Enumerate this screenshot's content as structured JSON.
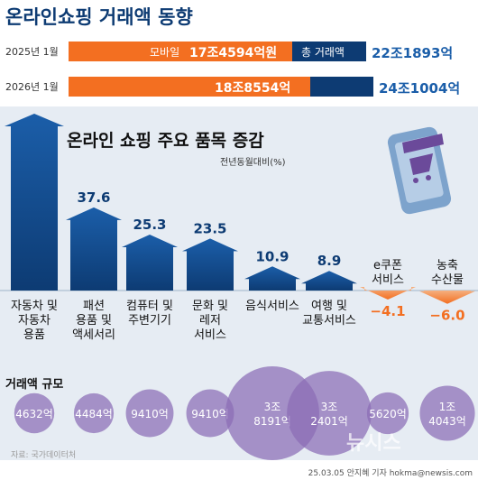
{
  "title": "온라인쇼핑 거래액 동향",
  "rows": [
    {
      "year": "2025년 1월",
      "mobile_label": "모바일",
      "mobile_value": "17조4594억원",
      "total_label": "총 거래액",
      "total_value": "22조1893억"
    },
    {
      "year": "2026년 1월",
      "mobile_label": "",
      "mobile_value": "18조8554억",
      "total_label": "",
      "total_value": "24조1004억"
    }
  ],
  "chart_title": "온라인 쇼핑 주요 품목 증감",
  "unit_label": "전년동월대비(%)",
  "volume_label": "거래액 규모",
  "source": "자료: 국가데이터처",
  "credit": "25.03.05 안지혜 기자 hokma@newsis.com",
  "watermark": "뉴시스",
  "colors": {
    "navy": "#0d3b73",
    "blue": "#1b5ea9",
    "orange": "#f36f21",
    "purple": "#6b4a9a",
    "bg": "#e6ecf3"
  },
  "chart_data": {
    "type": "bar",
    "title": "온라인 쇼핑 주요 품목 증감",
    "ylabel": "전년동월대비(%)",
    "categories": [
      "자동차 및 자동차 용품",
      "패션 용품 및 액세서리",
      "컴퓨터 및 주변기기",
      "문화 및 레저 서비스",
      "음식서비스",
      "여행 및 교통서비스",
      "e쿠폰 서비스",
      "농축 수산물"
    ],
    "category_lines": [
      [
        "자동차 및",
        "자동차",
        "용품"
      ],
      [
        "패션",
        "용품 및",
        "액세서리"
      ],
      [
        "컴퓨터 및",
        "주변기기"
      ],
      [
        "문화 및",
        "레저",
        "서비스"
      ],
      [
        "음식서비스"
      ],
      [
        "여행 및",
        "교통서비스"
      ],
      [
        "e쿠폰",
        "서비스"
      ],
      [
        "농축",
        "수산물"
      ]
    ],
    "values": [
      null,
      37.6,
      25.3,
      23.5,
      10.9,
      8.9,
      -4.1,
      -6.0
    ],
    "value_labels": [
      "",
      "37.6",
      "25.3",
      "23.5",
      "10.9",
      "8.9",
      "−4.1",
      "−6.0"
    ],
    "volumes": [
      [
        "4632억"
      ],
      [
        "4484억"
      ],
      [
        "9410억"
      ],
      [
        "9410억"
      ],
      [
        "3조",
        "8191억"
      ],
      [
        "3조",
        "2401억"
      ],
      [
        "5620억"
      ],
      [
        "1조",
        "4043억"
      ]
    ],
    "volume_values": [
      4632,
      4484,
      9410,
      9410,
      38191,
      32401,
      5620,
      14043
    ]
  }
}
